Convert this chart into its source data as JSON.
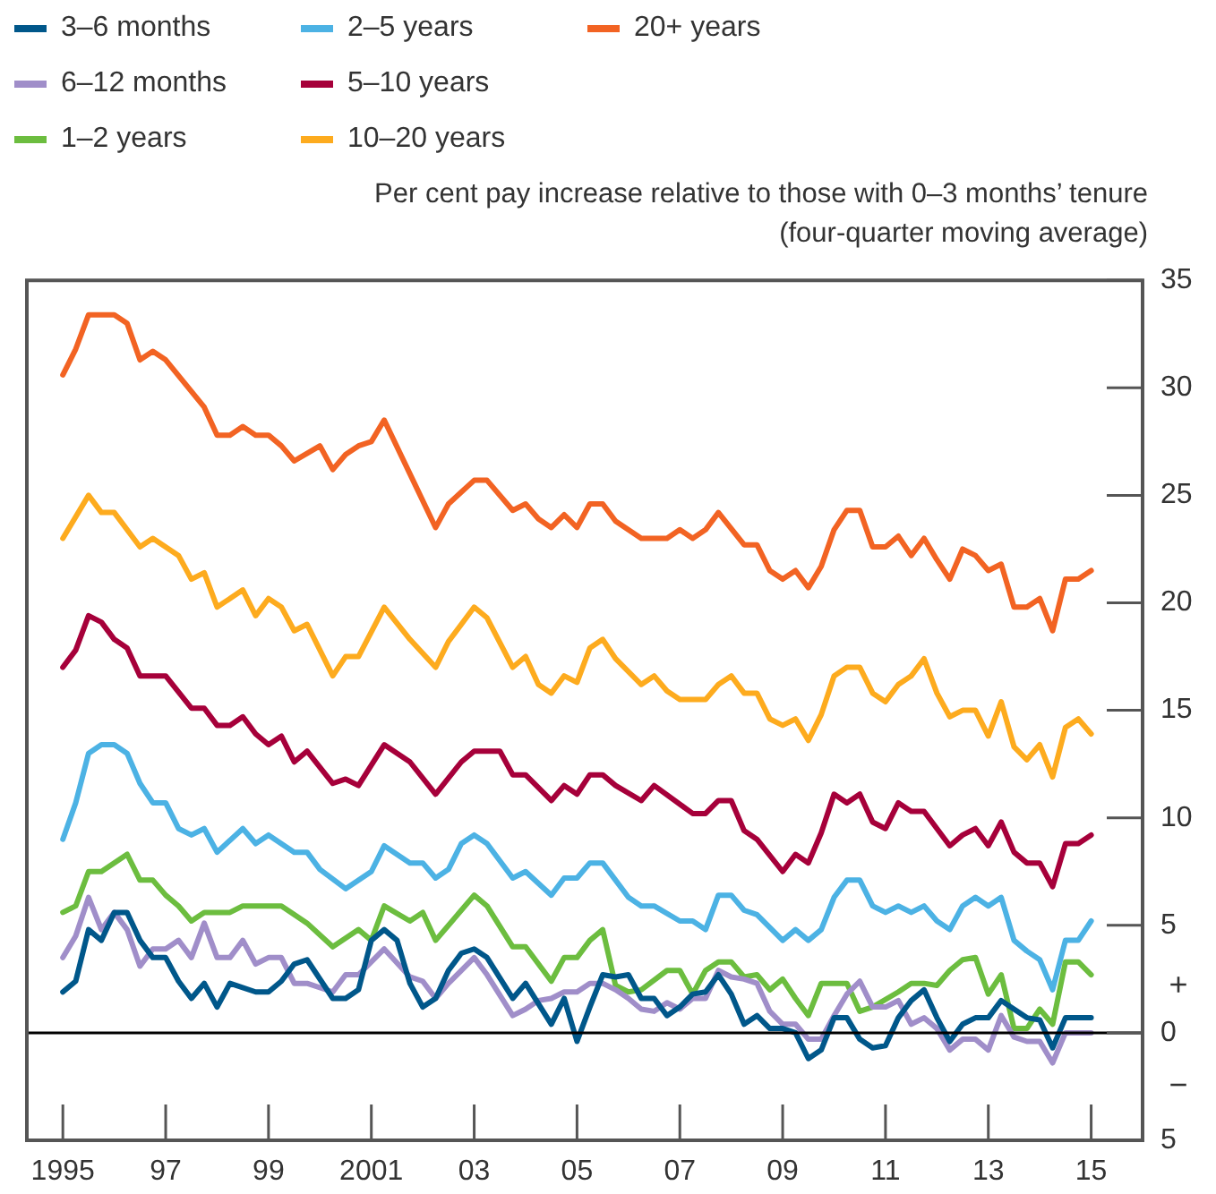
{
  "chart_data": {
    "type": "line",
    "ylabel": "Per cent pay increase relative to those with 0–3 months’ tenure\n(four-quarter moving average)",
    "legend": "top left",
    "grid": false,
    "marker": "none",
    "line_style": "solid",
    "xlim": [
      1994.3,
      2016
    ],
    "xticks": [
      {
        "value": 1995,
        "label": "1995"
      },
      {
        "value": 1997,
        "label": "97"
      },
      {
        "value": 1999,
        "label": "99"
      },
      {
        "value": 2001,
        "label": "2001"
      },
      {
        "value": 2003,
        "label": "03"
      },
      {
        "value": 2005,
        "label": "05"
      },
      {
        "value": 2007,
        "label": "07"
      },
      {
        "value": 2009,
        "label": "09"
      },
      {
        "value": 2011,
        "label": "11"
      },
      {
        "value": 2013,
        "label": "13"
      },
      {
        "value": 2015,
        "label": "15"
      }
    ],
    "ylim": [
      -5,
      35
    ],
    "yticks": [
      35,
      30,
      25,
      20,
      15,
      10,
      5,
      0,
      {
        "value": -5,
        "label": "5"
      }
    ],
    "ref_lines": [
      {
        "axis": "y",
        "value": 0,
        "color": "#000000"
      }
    ],
    "annotations": [
      "+",
      "−"
    ],
    "series": [
      {
        "name": "3–6 months",
        "color": "#00578a",
        "x": [
          1995,
          1995.25,
          1995.5,
          1995.75,
          1996,
          1996.25,
          1996.5,
          1996.75,
          1997,
          1997.25,
          1997.5,
          1997.75,
          1998,
          1998.25,
          1998.75,
          1999,
          1999.25,
          1999.5,
          1999.75,
          2000.25,
          2000.5,
          2000.75,
          2001,
          2001.25,
          2001.5,
          2001.75,
          2002,
          2002.25,
          2002.5,
          2002.75,
          2003,
          2003.25,
          2003.75,
          2004,
          2004.5,
          2004.75,
          2005,
          2005.25,
          2005.5,
          2005.75,
          2006,
          2006.25,
          2006.5,
          2006.75,
          2007,
          2007.25,
          2007.5,
          2007.75,
          2008,
          2008.25,
          2008.5,
          2008.75,
          2009,
          2009.25,
          2009.5,
          2009.75,
          2010,
          2010.25,
          2010.5,
          2010.75,
          2011,
          2011.25,
          2011.5,
          2011.75,
          2012,
          2012.25,
          2012.5,
          2012.75,
          2013,
          2013.25,
          2013.5,
          2013.75,
          2014,
          2014.25,
          2014.5,
          2014.75,
          2015
        ],
        "values": [
          1.9,
          2.4,
          4.8,
          4.3,
          5.6,
          5.6,
          4.3,
          3.5,
          3.5,
          2.4,
          1.6,
          2.3,
          1.2,
          2.3,
          1.9,
          1.9,
          2.4,
          3.2,
          3.4,
          1.6,
          1.6,
          2.0,
          4.3,
          4.8,
          4.3,
          2.3,
          1.2,
          1.6,
          2.9,
          3.7,
          3.9,
          3.5,
          1.6,
          2.3,
          0.4,
          1.6,
          -0.4,
          1.2,
          2.7,
          2.6,
          2.7,
          1.6,
          1.6,
          0.8,
          1.2,
          1.8,
          1.9,
          2.7,
          1.8,
          0.4,
          0.8,
          0.2,
          0.2,
          0.0,
          -1.2,
          -0.8,
          0.7,
          0.7,
          -0.3,
          -0.7,
          -0.6,
          0.7,
          1.5,
          2.0,
          0.7,
          -0.4,
          0.4,
          0.7,
          0.7,
          1.5,
          1.1,
          0.7,
          0.6,
          -0.7,
          0.7,
          0.7,
          0.7
        ]
      },
      {
        "name": "6–12 months",
        "color": "#a08ec9",
        "x": [
          1995,
          1995.25,
          1995.5,
          1995.75,
          1996,
          1996.25,
          1996.5,
          1996.75,
          1997,
          1997.25,
          1997.5,
          1997.75,
          1998,
          1998.25,
          1998.5,
          1998.75,
          1999,
          1999.25,
          1999.5,
          1999.75,
          2000.25,
          2000.5,
          2000.75,
          2001.25,
          2001.75,
          2002,
          2002.25,
          2002.5,
          2003,
          2003.25,
          2003.75,
          2004,
          2004.25,
          2004.5,
          2004.75,
          2005,
          2005.25,
          2005.5,
          2005.75,
          2006,
          2006.25,
          2006.5,
          2006.75,
          2007,
          2007.25,
          2007.5,
          2007.75,
          2008,
          2008.25,
          2008.5,
          2008.75,
          2009,
          2009.25,
          2009.5,
          2009.75,
          2010,
          2010.25,
          2010.5,
          2010.75,
          2011,
          2011.25,
          2011.5,
          2011.75,
          2012,
          2012.25,
          2012.5,
          2012.75,
          2013,
          2013.25,
          2013.5,
          2013.75,
          2014,
          2014.25,
          2014.5,
          2014.75,
          2015
        ],
        "values": [
          3.5,
          4.5,
          6.3,
          4.8,
          5.6,
          4.8,
          3.1,
          3.9,
          3.9,
          4.3,
          3.5,
          5.1,
          3.5,
          3.5,
          4.3,
          3.2,
          3.5,
          3.5,
          2.3,
          2.3,
          1.9,
          2.7,
          2.7,
          3.9,
          2.6,
          2.4,
          1.6,
          2.3,
          3.5,
          2.7,
          0.8,
          1.1,
          1.5,
          1.6,
          1.9,
          1.9,
          2.3,
          2.3,
          2.0,
          1.6,
          1.1,
          1.0,
          1.4,
          1.1,
          1.6,
          1.6,
          2.9,
          2.6,
          2.5,
          2.3,
          1.0,
          0.4,
          0.4,
          -0.3,
          -0.3,
          0.8,
          1.8,
          2.4,
          1.2,
          1.2,
          1.5,
          0.4,
          0.7,
          0.2,
          -0.8,
          -0.3,
          -0.3,
          -0.8,
          0.8,
          -0.2,
          -0.4,
          -0.4,
          -1.4,
          0.0,
          0.0,
          0.0
        ]
      },
      {
        "name": "1–2 years",
        "color": "#6cbd3f",
        "x": [
          1995,
          1995.25,
          1995.5,
          1995.75,
          1996.25,
          1996.5,
          1996.75,
          1997,
          1997.25,
          1997.5,
          1997.75,
          1998.25,
          1998.5,
          1999.25,
          1999.75,
          2000.25,
          2000.75,
          2001,
          2001.25,
          2001.75,
          2002,
          2002.25,
          2003,
          2003.25,
          2003.75,
          2004,
          2004.5,
          2004.75,
          2005,
          2005.25,
          2005.5,
          2005.75,
          2006,
          2006.25,
          2006.75,
          2007,
          2007.25,
          2007.5,
          2007.75,
          2008,
          2008.25,
          2008.5,
          2008.75,
          2009,
          2009.25,
          2009.5,
          2009.75,
          2010,
          2010.25,
          2010.5,
          2010.75,
          2011.25,
          2011.5,
          2011.75,
          2012,
          2012.25,
          2012.5,
          2012.75,
          2013,
          2013.25,
          2013.5,
          2013.75,
          2014,
          2014.25,
          2014.5,
          2014.75,
          2015
        ],
        "values": [
          5.6,
          5.9,
          7.5,
          7.5,
          8.3,
          7.1,
          7.1,
          6.4,
          5.9,
          5.2,
          5.6,
          5.6,
          5.9,
          5.9,
          5.1,
          4.0,
          4.8,
          4.3,
          5.9,
          5.2,
          5.6,
          4.3,
          6.4,
          5.9,
          4.0,
          4.0,
          2.4,
          3.5,
          3.5,
          4.3,
          4.8,
          2.2,
          1.9,
          2.0,
          2.9,
          2.9,
          1.8,
          2.9,
          3.3,
          3.3,
          2.6,
          2.7,
          2.0,
          2.5,
          1.6,
          0.8,
          2.3,
          2.3,
          2.3,
          1.0,
          1.2,
          1.9,
          2.3,
          2.3,
          2.2,
          2.9,
          3.4,
          3.5,
          1.8,
          2.7,
          0.2,
          0.2,
          1.1,
          0.4,
          3.3,
          3.3,
          2.7
        ]
      },
      {
        "name": "2–5 years",
        "color": "#4cb2e4",
        "x": [
          1995,
          1995.25,
          1995.5,
          1995.75,
          1996,
          1996.25,
          1996.5,
          1996.75,
          1997,
          1997.25,
          1997.5,
          1997.75,
          1998,
          1998.5,
          1998.75,
          1999,
          1999.5,
          1999.75,
          2000,
          2000.5,
          2001,
          2001.25,
          2001.75,
          2002,
          2002.25,
          2002.5,
          2002.75,
          2003,
          2003.25,
          2003.75,
          2004,
          2004.5,
          2004.75,
          2005,
          2005.25,
          2005.5,
          2005.75,
          2006,
          2006.25,
          2006.5,
          2007,
          2007.25,
          2007.5,
          2007.75,
          2008,
          2008.25,
          2008.5,
          2009,
          2009.25,
          2009.5,
          2009.75,
          2010,
          2010.25,
          2010.5,
          2010.75,
          2011,
          2011.25,
          2011.5,
          2011.75,
          2012,
          2012.25,
          2012.5,
          2012.75,
          2013,
          2013.25,
          2013.5,
          2013.75,
          2014,
          2014.25,
          2014.5,
          2014.75,
          2015
        ],
        "values": [
          9.0,
          10.7,
          13.0,
          13.4,
          13.4,
          13.0,
          11.6,
          10.7,
          10.7,
          9.5,
          9.2,
          9.5,
          8.4,
          9.5,
          8.8,
          9.2,
          8.4,
          8.4,
          7.6,
          6.7,
          7.5,
          8.7,
          7.9,
          7.9,
          7.2,
          7.6,
          8.8,
          9.2,
          8.8,
          7.2,
          7.5,
          6.4,
          7.2,
          7.2,
          7.9,
          7.9,
          7.1,
          6.3,
          5.9,
          5.9,
          5.2,
          5.2,
          4.8,
          6.4,
          6.4,
          5.7,
          5.5,
          4.3,
          4.8,
          4.3,
          4.8,
          6.3,
          7.1,
          7.1,
          5.9,
          5.6,
          5.9,
          5.6,
          5.9,
          5.2,
          4.8,
          5.9,
          6.3,
          5.9,
          6.3,
          4.3,
          3.8,
          3.4,
          2.0,
          4.3,
          4.3,
          5.2
        ]
      },
      {
        "name": "5–10 years",
        "color": "#a6003a",
        "x": [
          1995,
          1995.25,
          1995.5,
          1995.75,
          1996,
          1996.25,
          1996.5,
          1997,
          1997.5,
          1997.75,
          1998,
          1998.25,
          1998.5,
          1998.75,
          1999,
          1999.25,
          1999.5,
          1999.75,
          2000.25,
          2000.5,
          2000.75,
          2001.25,
          2001.75,
          2002.25,
          2002.75,
          2003,
          2003.5,
          2003.75,
          2004,
          2004.5,
          2004.75,
          2005,
          2005.25,
          2005.5,
          2005.75,
          2006.25,
          2006.5,
          2007.25,
          2007.5,
          2007.75,
          2008,
          2008.25,
          2008.5,
          2009,
          2009.25,
          2009.5,
          2009.75,
          2010,
          2010.25,
          2010.5,
          2010.75,
          2011,
          2011.25,
          2011.5,
          2011.75,
          2012,
          2012.25,
          2012.5,
          2012.75,
          2013,
          2013.25,
          2013.5,
          2013.75,
          2014,
          2014.25,
          2014.5,
          2014.75,
          2015
        ],
        "values": [
          17.0,
          17.8,
          19.4,
          19.1,
          18.3,
          17.9,
          16.6,
          16.6,
          15.1,
          15.1,
          14.3,
          14.3,
          14.7,
          13.9,
          13.4,
          13.8,
          12.6,
          13.1,
          11.6,
          11.8,
          11.5,
          13.4,
          12.6,
          11.1,
          12.6,
          13.1,
          13.1,
          12.0,
          12.0,
          10.8,
          11.5,
          11.1,
          12.0,
          12.0,
          11.5,
          10.8,
          11.5,
          10.2,
          10.2,
          10.8,
          10.8,
          9.4,
          9.0,
          7.5,
          8.3,
          7.9,
          9.3,
          11.1,
          10.7,
          11.1,
          9.8,
          9.5,
          10.7,
          10.3,
          10.3,
          9.5,
          8.7,
          9.2,
          9.5,
          8.7,
          9.8,
          8.4,
          7.9,
          7.9,
          6.8,
          8.8,
          8.8,
          9.2
        ]
      },
      {
        "name": "10–20 years",
        "color": "#fdab1e",
        "x": [
          1995,
          1995.5,
          1995.75,
          1996,
          1996.5,
          1996.75,
          1997.25,
          1997.5,
          1997.75,
          1998,
          1998.5,
          1998.75,
          1999,
          1999.25,
          1999.5,
          1999.75,
          2000.25,
          2000.5,
          2000.75,
          2001.25,
          2001.75,
          2002.25,
          2002.5,
          2003,
          2003.25,
          2003.75,
          2004,
          2004.25,
          2004.5,
          2004.75,
          2005,
          2005.25,
          2005.5,
          2005.75,
          2006.25,
          2006.5,
          2006.75,
          2007,
          2007.5,
          2007.75,
          2008,
          2008.25,
          2008.5,
          2008.75,
          2009,
          2009.25,
          2009.5,
          2009.75,
          2010,
          2010.25,
          2010.5,
          2010.75,
          2011,
          2011.25,
          2011.5,
          2011.75,
          2012,
          2012.25,
          2012.5,
          2012.75,
          2013,
          2013.25,
          2013.5,
          2013.75,
          2014,
          2014.25,
          2014.5,
          2014.75,
          2015
        ],
        "values": [
          23.0,
          25.0,
          24.2,
          24.2,
          22.6,
          23.0,
          22.2,
          21.1,
          21.4,
          19.8,
          20.6,
          19.4,
          20.2,
          19.8,
          18.7,
          19.0,
          16.6,
          17.5,
          17.5,
          19.8,
          18.3,
          17.0,
          18.2,
          19.8,
          19.3,
          17.0,
          17.5,
          16.2,
          15.8,
          16.6,
          16.3,
          17.9,
          18.3,
          17.4,
          16.2,
          16.6,
          15.9,
          15.5,
          15.5,
          16.2,
          16.6,
          15.8,
          15.8,
          14.6,
          14.3,
          14.6,
          13.6,
          14.8,
          16.6,
          17.0,
          17.0,
          15.8,
          15.4,
          16.2,
          16.6,
          17.4,
          15.8,
          14.7,
          15.0,
          15.0,
          13.8,
          15.4,
          13.3,
          12.7,
          13.4,
          11.9,
          14.2,
          14.6,
          13.9
        ]
      },
      {
        "name": "20+ years",
        "color": "#f26323",
        "x": [
          1995,
          1995.25,
          1995.5,
          1996,
          1996.25,
          1996.5,
          1996.75,
          1997,
          1997.75,
          1998,
          1998.25,
          1998.5,
          1998.75,
          1999,
          1999.25,
          1999.5,
          2000,
          2000.25,
          2000.5,
          2000.75,
          2001,
          2001.25,
          2001.75,
          2002.25,
          2002.5,
          2003,
          2003.25,
          2003.75,
          2004,
          2004.25,
          2004.5,
          2004.75,
          2005,
          2005.25,
          2005.5,
          2005.75,
          2006.25,
          2006.75,
          2007,
          2007.25,
          2007.5,
          2007.75,
          2008.25,
          2008.5,
          2008.75,
          2009,
          2009.25,
          2009.5,
          2009.75,
          2010,
          2010.25,
          2010.5,
          2010.75,
          2011,
          2011.25,
          2011.5,
          2011.75,
          2012,
          2012.25,
          2012.5,
          2012.75,
          2013,
          2013.25,
          2013.5,
          2013.75,
          2014,
          2014.25,
          2014.5,
          2014.75,
          2015
        ],
        "values": [
          30.6,
          31.8,
          33.4,
          33.4,
          33.0,
          31.3,
          31.7,
          31.3,
          29.1,
          27.8,
          27.8,
          28.2,
          27.8,
          27.8,
          27.3,
          26.6,
          27.3,
          26.2,
          26.9,
          27.3,
          27.5,
          28.5,
          26.0,
          23.5,
          24.6,
          25.7,
          25.7,
          24.3,
          24.6,
          23.9,
          23.5,
          24.1,
          23.5,
          24.6,
          24.6,
          23.8,
          23.0,
          23.0,
          23.4,
          23.0,
          23.4,
          24.2,
          22.7,
          22.7,
          21.5,
          21.1,
          21.5,
          20.7,
          21.7,
          23.4,
          24.3,
          24.3,
          22.6,
          22.6,
          23.1,
          22.2,
          23.0,
          22.0,
          21.1,
          22.5,
          22.2,
          21.5,
          21.8,
          19.8,
          19.8,
          20.2,
          18.7,
          21.1,
          21.1,
          21.5
        ]
      }
    ]
  }
}
